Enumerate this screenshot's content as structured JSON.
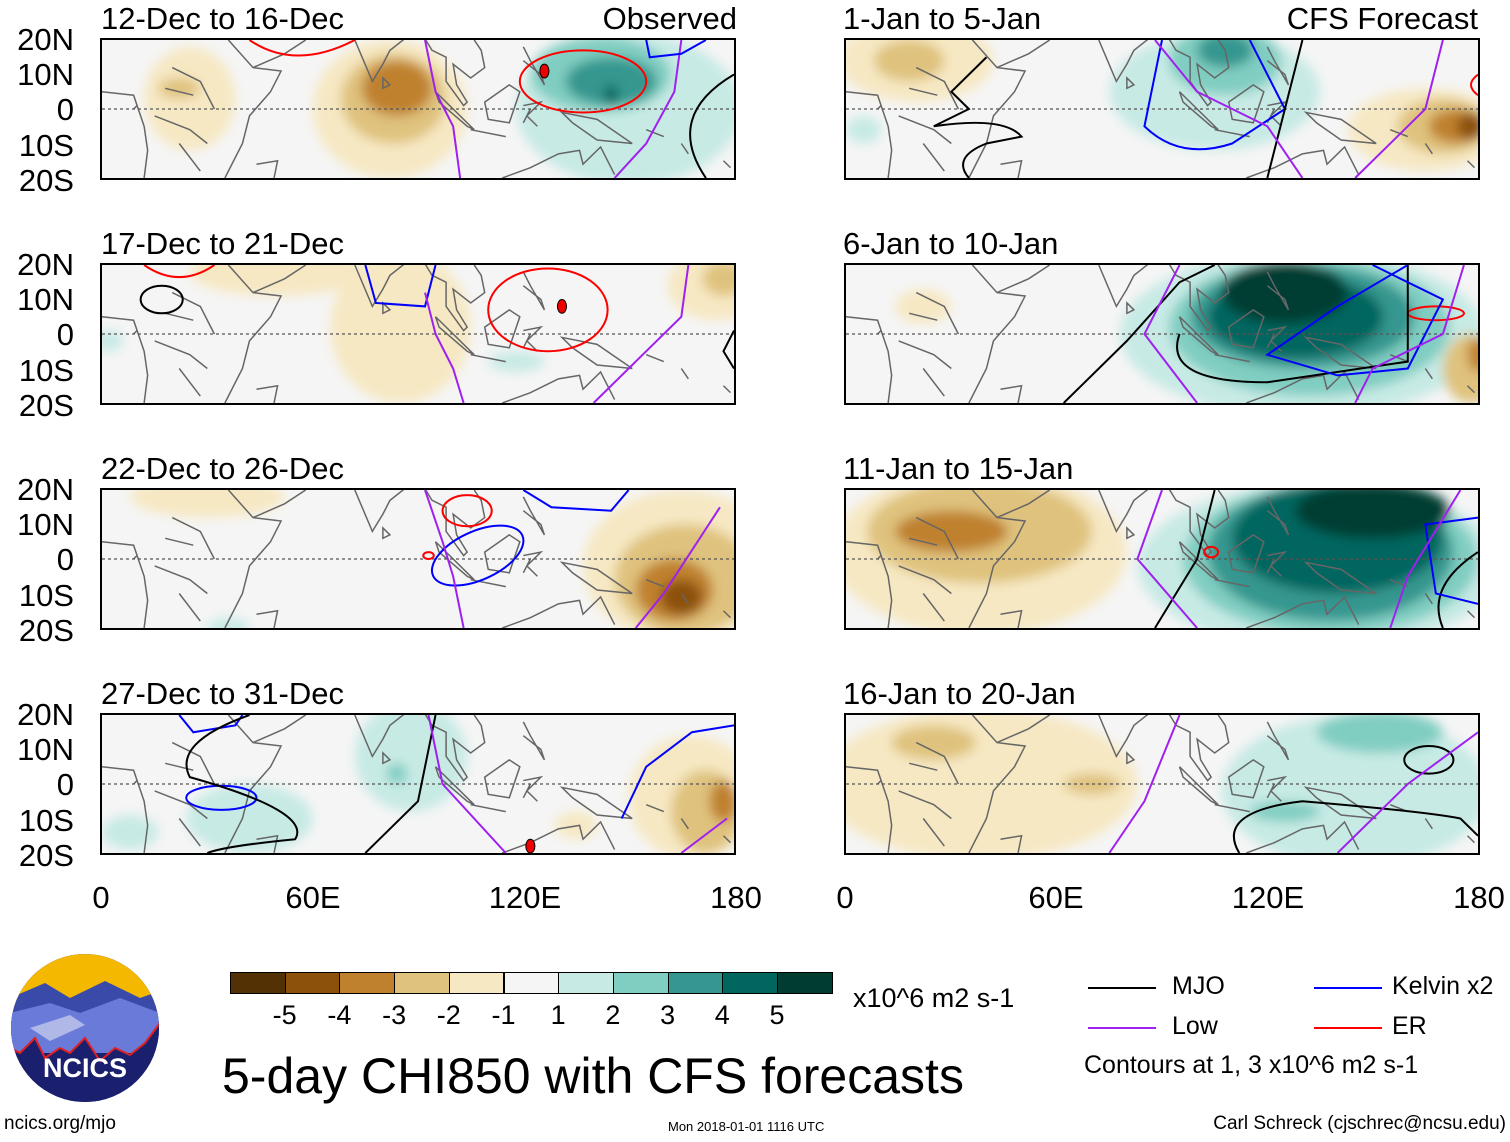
{
  "figure_title": "5-day CHI850 with CFS forecasts",
  "observed_label": "Observed",
  "forecast_label": "CFS Forecast",
  "logo_text": "NCICS",
  "url": "ncics.org/mjo",
  "timestamp": "Mon 2018-01-01 1116 UTC",
  "author": "Carl Schreck (cjschrec@ncsu.edu)",
  "chart_data": {
    "type": "heatmap",
    "title": "5-day CHI850 with CFS forecasts",
    "units": "x10^6 m2 s-1",
    "lat_ticks": [
      "20N",
      "10N",
      "0",
      "10S",
      "20S"
    ],
    "lon_ticks": [
      "0",
      "60E",
      "120E",
      "180"
    ],
    "lat_range": [
      -20,
      20
    ],
    "lon_range": [
      0,
      180
    ],
    "panels_observed": [
      "12-Dec to 16-Dec",
      "17-Dec to 21-Dec",
      "22-Dec to 26-Dec",
      "27-Dec to 31-Dec"
    ],
    "panels_forecast": [
      "1-Jan to 5-Jan",
      "6-Jan to 10-Jan",
      "11-Jan to 15-Jan",
      "16-Jan to 20-Jan"
    ],
    "colorbar": {
      "labels": [
        "-5",
        "-4",
        "-3",
        "-2",
        "-1",
        "1",
        "2",
        "3",
        "4",
        "5"
      ],
      "colors": [
        "#543005",
        "#8c510a",
        "#bf812d",
        "#dfc27d",
        "#f6e8c3",
        "#f5f5f5",
        "#c7eae5",
        "#80cdc1",
        "#35978f",
        "#01665e",
        "#003c30"
      ]
    },
    "legend": [
      {
        "label": "MJO",
        "color": "#000000"
      },
      {
        "label": "Kelvin x2",
        "color": "#0000ff"
      },
      {
        "label": "Low",
        "color": "#a020f0"
      },
      {
        "label": "ER",
        "color": "#ff0000"
      }
    ],
    "contour_note": "Contours at 1, 3 x10^6 m2 s-1"
  }
}
